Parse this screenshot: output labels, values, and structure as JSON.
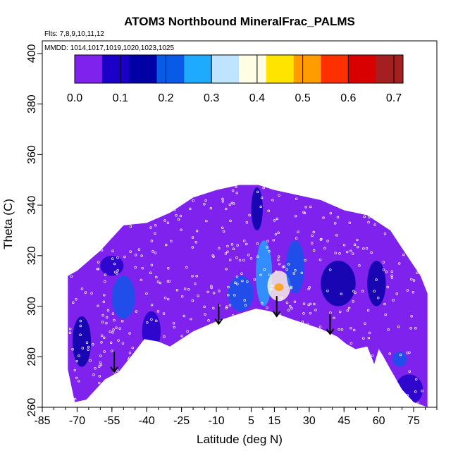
{
  "chart_data": {
    "type": "heatmap",
    "title": "ATOM3 Northbound MineralFrac_PALMS",
    "annotations": [
      "Flts: 7,8,9,10,11,12",
      "MMDD: 1014,1017,1019,1020,1023,1025"
    ],
    "xlabel": "Latitude (deg N)",
    "ylabel": "Theta (C)",
    "xlim": [
      -85,
      85
    ],
    "ylim": [
      260,
      405
    ],
    "x_ticks": [
      -85,
      -70,
      -55,
      -40,
      -25,
      -10,
      5,
      15,
      30,
      45,
      60,
      75
    ],
    "x_tick_labels": [
      "-85",
      "-70",
      "-55",
      "-40",
      "-25",
      "-10",
      "5",
      "15",
      "30",
      "45",
      "60",
      "75"
    ],
    "y_ticks": [
      260,
      280,
      300,
      320,
      340,
      360,
      380,
      400
    ],
    "y_tick_labels": [
      "260",
      "280",
      "300",
      "320",
      "340",
      "360",
      "380",
      "400"
    ],
    "colorbar": {
      "range": [
        0.0,
        0.72
      ],
      "ticks": [
        0.0,
        0.1,
        0.2,
        0.3,
        0.4,
        0.5,
        0.6,
        0.7
      ],
      "tick_labels": [
        "0.0",
        "0.1",
        "0.2",
        "0.3",
        "0.4",
        "0.5",
        "0.6",
        "0.7"
      ],
      "colors": [
        "#7f22ee",
        "#1a00c6",
        "#0000a4",
        "#0a5ae8",
        "#1eaaff",
        "#bfe4ff",
        "#fffde4",
        "#ffe400",
        "#ff9c00",
        "#ff3000",
        "#d80000",
        "#a42020"
      ]
    },
    "domain_boundary": {
      "top": [
        [
          -74,
          312
        ],
        [
          -70,
          314
        ],
        [
          -65,
          318
        ],
        [
          -60,
          322
        ],
        [
          -55,
          327
        ],
        [
          -50,
          332
        ],
        [
          -40,
          333
        ],
        [
          -30,
          337
        ],
        [
          -20,
          343
        ],
        [
          -10,
          346
        ],
        [
          0,
          348
        ],
        [
          8,
          348
        ],
        [
          15,
          346
        ],
        [
          25,
          344
        ],
        [
          35,
          342
        ],
        [
          45,
          338
        ],
        [
          55,
          336
        ],
        [
          65,
          330
        ],
        [
          70,
          323
        ],
        [
          78,
          312
        ],
        [
          81,
          305
        ]
      ],
      "bottom": [
        [
          -74,
          305
        ],
        [
          -74,
          275
        ],
        [
          -71,
          262
        ],
        [
          -66,
          263
        ],
        [
          -58,
          271
        ],
        [
          -52,
          274
        ],
        [
          -46,
          281
        ],
        [
          -41,
          287
        ],
        [
          -35,
          286
        ],
        [
          -30,
          284
        ],
        [
          -20,
          290
        ],
        [
          -10,
          294
        ],
        [
          0,
          297
        ],
        [
          7,
          299
        ],
        [
          13,
          298
        ],
        [
          22,
          295
        ],
        [
          35,
          291
        ],
        [
          42,
          288
        ],
        [
          46,
          285
        ],
        [
          50,
          283
        ],
        [
          55,
          284
        ],
        [
          58,
          277
        ],
        [
          60,
          283
        ],
        [
          62,
          280
        ],
        [
          65,
          275
        ],
        [
          70,
          267
        ],
        [
          75,
          262
        ],
        [
          81,
          260
        ]
      ]
    },
    "features": [
      {
        "x": [
          -55,
          -45
        ],
        "y": [
          295,
          312
        ],
        "value": 0.18
      },
      {
        "x": [
          -72,
          -64
        ],
        "y": [
          276,
          296
        ],
        "value": 0.15
      },
      {
        "x": [
          -42,
          -34
        ],
        "y": [
          282,
          298
        ],
        "value": 0.08
      },
      {
        "x": [
          -5,
          6
        ],
        "y": [
          298,
          312
        ],
        "value": 0.22
      },
      {
        "x": [
          7,
          14
        ],
        "y": [
          300,
          326
        ],
        "value": 0.28
      },
      {
        "x": [
          12,
          22
        ],
        "y": [
          302,
          314
        ],
        "value": 0.42
      },
      {
        "x": [
          15,
          19
        ],
        "y": [
          306,
          309
        ],
        "value": 0.55
      },
      {
        "x": [
          20,
          28
        ],
        "y": [
          305,
          326
        ],
        "value": 0.2
      },
      {
        "x": [
          5,
          10
        ],
        "y": [
          330,
          347
        ],
        "value": 0.1
      },
      {
        "x": [
          35,
          50
        ],
        "y": [
          300,
          318
        ],
        "value": 0.12
      },
      {
        "x": [
          55,
          63
        ],
        "y": [
          300,
          318
        ],
        "value": 0.14
      },
      {
        "x": [
          -60,
          -50
        ],
        "y": [
          312,
          320
        ],
        "value": 0.08
      },
      {
        "x": [
          66,
          72
        ],
        "y": [
          276,
          282
        ],
        "value": 0.22
      },
      {
        "x": [
          67,
          79
        ],
        "y": [
          261,
          273
        ],
        "value": 0.08
      }
    ],
    "arrows": [
      {
        "x": -54,
        "y_start": 282,
        "y_end": 274
      },
      {
        "x": -9,
        "y_start": 301,
        "y_end": 293
      },
      {
        "x": 16,
        "y_start": 304,
        "y_end": 296
      },
      {
        "x": 39,
        "y_start": 297,
        "y_end": 289
      }
    ]
  }
}
